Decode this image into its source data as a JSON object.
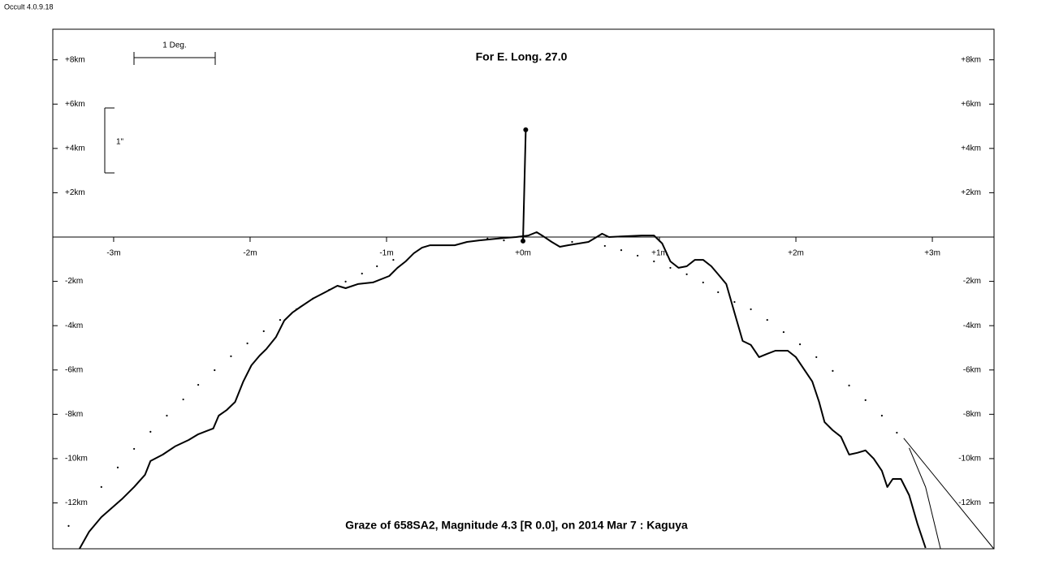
{
  "app_label": "Occult 4.0.9.18",
  "chart_data": {
    "type": "line",
    "title": "For E. Long. 27.0",
    "footer": "Graze of  658SA2,  Magnitude 4.3 [R 0.0],  on 2014 Mar  7  :  Kaguya",
    "scale_x_label": "1 Deg.",
    "scale_y_label": "1\"",
    "xlim": [
      -3.446,
      3.452
    ],
    "ylim": [
      -14.07,
      9.38
    ],
    "xticks": [
      {
        "value": -3,
        "label": "-3m"
      },
      {
        "value": -2,
        "label": "-2m"
      },
      {
        "value": -1,
        "label": "-1m"
      },
      {
        "value": 0,
        "label": "+0m"
      },
      {
        "value": 1,
        "label": "+1m"
      },
      {
        "value": 2,
        "label": "+2m"
      },
      {
        "value": 3,
        "label": "+3m"
      }
    ],
    "yticks": [
      {
        "value": 8,
        "label": "+8km"
      },
      {
        "value": 6,
        "label": "+6km"
      },
      {
        "value": 4,
        "label": "+4km"
      },
      {
        "value": 2,
        "label": "+2km"
      },
      {
        "value": -2,
        "label": "-2km"
      },
      {
        "value": -4,
        "label": "-4km"
      },
      {
        "value": -6,
        "label": "-6km"
      },
      {
        "value": -8,
        "label": "-8km"
      },
      {
        "value": -10,
        "label": "-10km"
      },
      {
        "value": -12,
        "label": "-12km"
      }
    ],
    "series": [
      {
        "style": "line",
        "color": "#000000",
        "x": [
          -3.25,
          -3.18,
          -3.09,
          -2.94,
          -2.85,
          -2.77,
          -2.73,
          -2.64,
          -2.55,
          -2.45,
          -2.38,
          -2.27,
          -2.23,
          -2.17,
          -2.11,
          -2.05,
          -1.99,
          -1.93,
          -1.88,
          -1.81,
          -1.75,
          -1.69,
          -1.63,
          -1.54,
          -1.45,
          -1.36,
          -1.3,
          -1.21,
          -1.1,
          -0.98,
          -0.92,
          -0.86,
          -0.8,
          -0.74,
          -0.68,
          -0.5,
          -0.41,
          -0.32,
          -0.14,
          -0.05,
          0.04,
          0.1,
          0.14,
          0.21,
          0.27,
          0.33,
          0.48,
          0.54,
          0.58,
          0.63,
          0.87,
          0.96,
          1.02,
          1.08,
          1.14,
          1.2,
          1.26,
          1.32,
          1.38,
          1.43,
          1.49,
          1.55,
          1.61,
          1.67,
          1.73,
          1.79,
          1.85,
          1.94,
          2.0,
          2.06,
          2.12,
          2.17,
          2.21,
          2.27,
          2.33,
          2.39,
          2.45,
          2.51,
          2.57,
          2.63,
          2.67,
          2.71,
          2.77,
          2.83,
          2.89,
          2.95
        ],
        "values": [
          -14.07,
          -13.3,
          -12.64,
          -11.83,
          -11.28,
          -10.73,
          -10.11,
          -9.82,
          -9.45,
          -9.16,
          -8.9,
          -8.64,
          -8.06,
          -7.8,
          -7.44,
          -6.52,
          -5.79,
          -5.35,
          -5.05,
          -4.51,
          -3.77,
          -3.41,
          -3.15,
          -2.78,
          -2.49,
          -2.2,
          -2.31,
          -2.12,
          -2.05,
          -1.76,
          -1.39,
          -1.1,
          -0.73,
          -0.48,
          -0.37,
          -0.37,
          -0.22,
          -0.15,
          -0.04,
          0,
          0.07,
          0.22,
          0.07,
          -0.22,
          -0.44,
          -0.37,
          -0.22,
          0,
          0.15,
          0,
          0.07,
          0.07,
          -0.29,
          -1.1,
          -1.39,
          -1.32,
          -1.03,
          -1.03,
          -1.32,
          -1.68,
          -2.12,
          -3.41,
          -4.69,
          -4.87,
          -5.42,
          -5.27,
          -5.13,
          -5.13,
          -5.42,
          -5.97,
          -6.52,
          -7.44,
          -8.35,
          -8.72,
          -9.01,
          -9.82,
          -9.74,
          -9.63,
          -10.0,
          -10.55,
          -11.28,
          -10.92,
          -10.92,
          -11.65,
          -12.93,
          -14.03
        ]
      },
      {
        "style": "dots",
        "color": "#000000",
        "x": [
          -3.33,
          -3.09,
          -2.97,
          -2.85,
          -2.73,
          -2.61,
          -2.49,
          -2.38,
          -2.26,
          -2.14,
          -2.02,
          -1.9,
          -1.78,
          -1.66,
          -1.54,
          -1.42,
          -1.3,
          -1.18,
          -1.07,
          -0.95,
          -0.26,
          -0.14,
          0.36,
          0.6,
          0.72,
          0.84,
          0.96,
          1.08,
          1.2,
          1.32,
          1.43,
          1.55,
          1.67,
          1.79,
          1.91,
          2.03,
          2.15,
          2.27,
          2.39,
          2.51,
          2.63,
          2.74
        ],
        "values": [
          -13.04,
          -11.28,
          -10.4,
          -9.56,
          -8.79,
          -8.06,
          -7.33,
          -6.67,
          -6.01,
          -5.38,
          -4.8,
          -4.25,
          -3.74,
          -3.26,
          -2.78,
          -2.38,
          -2.01,
          -1.65,
          -1.32,
          -1.03,
          -0.07,
          -0.15,
          -0.22,
          -0.4,
          -0.59,
          -0.84,
          -1.1,
          -1.39,
          -1.68,
          -2.05,
          -2.49,
          -2.93,
          -3.26,
          -3.74,
          -4.29,
          -4.84,
          -5.42,
          -6.04,
          -6.7,
          -7.36,
          -8.06,
          -8.83
        ]
      },
      {
        "style": "marker",
        "color": "#000000",
        "x": [
          0,
          0.02
        ],
        "values": [
          -0.18,
          4.84
        ]
      },
      {
        "style": "thin",
        "color": "#000000",
        "x": [
          2.79,
          3.45
        ],
        "values": [
          -9.08,
          -14.07
        ]
      },
      {
        "style": "thin",
        "color": "#000000",
        "x": [
          2.83,
          2.95,
          3.06
        ],
        "values": [
          -9.52,
          -11.28,
          -14.07
        ]
      }
    ]
  }
}
